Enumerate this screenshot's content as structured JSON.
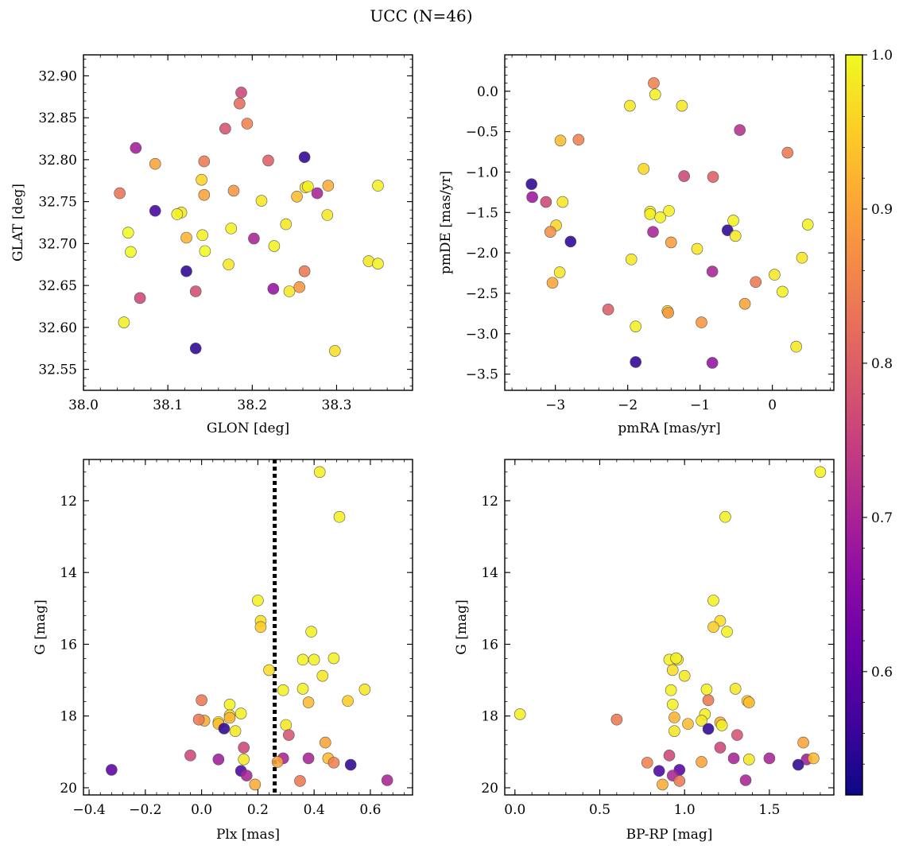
{
  "figure": {
    "title": "UCC (N=46)"
  },
  "chart_data": [
    {
      "id": "glon_glat",
      "type": "scatter",
      "xlabel": "GLON [deg]",
      "ylabel": "GLAT [deg]",
      "xlim": [
        38.0,
        38.39
      ],
      "ylim": [
        32.525,
        32.925
      ],
      "xticks": [
        38.0,
        38.1,
        38.2,
        38.3
      ],
      "xtick_labels": [
        "38.0",
        "38.1",
        "38.2",
        "38.3"
      ],
      "yticks": [
        32.55,
        32.6,
        32.65,
        32.7,
        32.75,
        32.8,
        32.85,
        32.9
      ],
      "ytick_labels": [
        "32.55",
        "32.60",
        "32.65",
        "32.70",
        "32.75",
        "32.80",
        "32.85",
        "32.90"
      ],
      "points": [
        {
          "x": 38.187,
          "y": 32.88,
          "c": 0.76
        },
        {
          "x": 38.185,
          "y": 32.867,
          "c": 0.82
        },
        {
          "x": 38.194,
          "y": 32.843,
          "c": 0.85
        },
        {
          "x": 38.168,
          "y": 32.837,
          "c": 0.78
        },
        {
          "x": 38.062,
          "y": 32.814,
          "c": 0.69
        },
        {
          "x": 38.085,
          "y": 32.795,
          "c": 0.9
        },
        {
          "x": 38.143,
          "y": 32.798,
          "c": 0.84
        },
        {
          "x": 38.219,
          "y": 32.799,
          "c": 0.8
        },
        {
          "x": 38.262,
          "y": 32.803,
          "c": 0.55
        },
        {
          "x": 38.14,
          "y": 32.776,
          "c": 0.96
        },
        {
          "x": 38.043,
          "y": 32.76,
          "c": 0.83
        },
        {
          "x": 38.143,
          "y": 32.758,
          "c": 0.9
        },
        {
          "x": 38.178,
          "y": 32.763,
          "c": 0.88
        },
        {
          "x": 38.211,
          "y": 32.751,
          "c": 0.98
        },
        {
          "x": 38.253,
          "y": 32.756,
          "c": 0.93
        },
        {
          "x": 38.263,
          "y": 32.767,
          "c": 0.97
        },
        {
          "x": 38.266,
          "y": 32.768,
          "c": 0.99
        },
        {
          "x": 38.277,
          "y": 32.76,
          "c": 0.7
        },
        {
          "x": 38.29,
          "y": 32.769,
          "c": 0.91
        },
        {
          "x": 38.349,
          "y": 32.769,
          "c": 0.99
        },
        {
          "x": 38.085,
          "y": 32.739,
          "c": 0.57
        },
        {
          "x": 38.116,
          "y": 32.737,
          "c": 0.98
        },
        {
          "x": 38.111,
          "y": 32.735,
          "c": 0.99
        },
        {
          "x": 38.053,
          "y": 32.713,
          "c": 1.0
        },
        {
          "x": 38.141,
          "y": 32.71,
          "c": 0.99
        },
        {
          "x": 38.122,
          "y": 32.707,
          "c": 0.92
        },
        {
          "x": 38.175,
          "y": 32.718,
          "c": 0.99
        },
        {
          "x": 38.202,
          "y": 32.706,
          "c": 0.7
        },
        {
          "x": 38.24,
          "y": 32.723,
          "c": 0.98
        },
        {
          "x": 38.289,
          "y": 32.734,
          "c": 0.98
        },
        {
          "x": 38.056,
          "y": 32.69,
          "c": 1.0
        },
        {
          "x": 38.144,
          "y": 32.691,
          "c": 1.0
        },
        {
          "x": 38.226,
          "y": 32.697,
          "c": 0.99
        },
        {
          "x": 38.172,
          "y": 32.675,
          "c": 0.98
        },
        {
          "x": 38.338,
          "y": 32.679,
          "c": 0.98
        },
        {
          "x": 38.349,
          "y": 32.676,
          "c": 0.99
        },
        {
          "x": 38.122,
          "y": 32.667,
          "c": 0.55
        },
        {
          "x": 38.262,
          "y": 32.667,
          "c": 0.84
        },
        {
          "x": 38.133,
          "y": 32.643,
          "c": 0.77
        },
        {
          "x": 38.225,
          "y": 32.646,
          "c": 0.67
        },
        {
          "x": 38.244,
          "y": 32.643,
          "c": 0.98
        },
        {
          "x": 38.256,
          "y": 32.648,
          "c": 0.88
        },
        {
          "x": 38.067,
          "y": 32.635,
          "c": 0.76
        },
        {
          "x": 38.048,
          "y": 32.606,
          "c": 0.99
        },
        {
          "x": 38.133,
          "y": 32.575,
          "c": 0.55
        },
        {
          "x": 38.298,
          "y": 32.572,
          "c": 0.97
        }
      ]
    },
    {
      "id": "pm",
      "type": "scatter",
      "xlabel": "pmRA [mas/yr]",
      "ylabel": "pmDE [mas/yr]",
      "xlim": [
        -3.7,
        0.85
      ],
      "ylim": [
        -3.7,
        0.45
      ],
      "xticks": [
        -3,
        -2,
        -1,
        0
      ],
      "xtick_labels": [
        "−3",
        "−2",
        "−1",
        "0"
      ],
      "yticks": [
        -3.5,
        -3.0,
        -2.5,
        -2.0,
        -1.5,
        -1.0,
        -0.5,
        0.0
      ],
      "ytick_labels": [
        "−3.5",
        "−3.0",
        "−2.5",
        "−2.0",
        "−1.5",
        "−1.0",
        "−0.5",
        "0.0"
      ],
      "points": [
        {
          "x": -1.64,
          "y": 0.1,
          "c": 0.85
        },
        {
          "x": -1.62,
          "y": -0.04,
          "c": 0.99
        },
        {
          "x": -1.97,
          "y": -0.18,
          "c": 0.98
        },
        {
          "x": -1.25,
          "y": -0.18,
          "c": 0.98
        },
        {
          "x": -0.45,
          "y": -0.48,
          "c": 0.72
        },
        {
          "x": -2.93,
          "y": -0.61,
          "c": 0.93
        },
        {
          "x": -2.68,
          "y": -0.6,
          "c": 0.85
        },
        {
          "x": 0.21,
          "y": -0.76,
          "c": 0.84
        },
        {
          "x": -1.78,
          "y": -0.96,
          "c": 0.96
        },
        {
          "x": -1.22,
          "y": -1.05,
          "c": 0.76
        },
        {
          "x": -0.82,
          "y": -1.06,
          "c": 0.8
        },
        {
          "x": -3.33,
          "y": -1.15,
          "c": 0.55
        },
        {
          "x": -3.32,
          "y": -1.31,
          "c": 0.68
        },
        {
          "x": -3.13,
          "y": -1.37,
          "c": 0.76
        },
        {
          "x": -2.9,
          "y": -1.37,
          "c": 0.98
        },
        {
          "x": -1.69,
          "y": -1.49,
          "c": 0.99
        },
        {
          "x": -1.69,
          "y": -1.52,
          "c": 0.99
        },
        {
          "x": -1.55,
          "y": -1.56,
          "c": 0.99
        },
        {
          "x": -1.43,
          "y": -1.48,
          "c": 0.99
        },
        {
          "x": -0.54,
          "y": -1.6,
          "c": 0.99
        },
        {
          "x": 0.49,
          "y": -1.65,
          "c": 0.99
        },
        {
          "x": -2.99,
          "y": -1.66,
          "c": 0.96
        },
        {
          "x": -3.07,
          "y": -1.74,
          "c": 0.87
        },
        {
          "x": -1.65,
          "y": -1.74,
          "c": 0.7
        },
        {
          "x": -0.62,
          "y": -1.72,
          "c": 0.55
        },
        {
          "x": -0.51,
          "y": -1.79,
          "c": 0.98
        },
        {
          "x": -2.79,
          "y": -1.86,
          "c": 0.55
        },
        {
          "x": -1.4,
          "y": -1.87,
          "c": 0.89
        },
        {
          "x": -1.04,
          "y": -1.95,
          "c": 0.98
        },
        {
          "x": -1.95,
          "y": -2.08,
          "c": 0.98
        },
        {
          "x": 0.41,
          "y": -2.06,
          "c": 0.98
        },
        {
          "x": -2.94,
          "y": -2.24,
          "c": 0.98
        },
        {
          "x": -0.83,
          "y": -2.23,
          "c": 0.7
        },
        {
          "x": 0.03,
          "y": -2.27,
          "c": 0.98
        },
        {
          "x": -3.04,
          "y": -2.37,
          "c": 0.9
        },
        {
          "x": -0.23,
          "y": -2.36,
          "c": 0.84
        },
        {
          "x": 0.14,
          "y": -2.48,
          "c": 0.99
        },
        {
          "x": -0.38,
          "y": -2.63,
          "c": 0.9
        },
        {
          "x": -2.27,
          "y": -2.7,
          "c": 0.8
        },
        {
          "x": -1.45,
          "y": -2.72,
          "c": 0.98
        },
        {
          "x": -1.44,
          "y": -2.74,
          "c": 0.88
        },
        {
          "x": -0.98,
          "y": -2.86,
          "c": 0.88
        },
        {
          "x": -1.89,
          "y": -2.91,
          "c": 0.99
        },
        {
          "x": 0.33,
          "y": -3.16,
          "c": 0.98
        },
        {
          "x": -1.89,
          "y": -3.35,
          "c": 0.55
        },
        {
          "x": -0.83,
          "y": -3.36,
          "c": 0.67
        }
      ]
    },
    {
      "id": "plx_g",
      "type": "scatter",
      "xlabel": "Plx [mas]",
      "ylabel": "G [mag]",
      "xlim": [
        -0.42,
        0.75
      ],
      "ylim": [
        20.2,
        10.85
      ],
      "y_inverted": true,
      "vline": {
        "x": 0.26,
        "style": "dotted"
      },
      "xticks": [
        -0.4,
        -0.2,
        0.0,
        0.2,
        0.4,
        0.6
      ],
      "xtick_labels": [
        "−0.4",
        "−0.2",
        "0.0",
        "0.2",
        "0.4",
        "0.6"
      ],
      "yticks": [
        12,
        14,
        16,
        18,
        20
      ],
      "ytick_labels": [
        "12",
        "14",
        "16",
        "18",
        "20"
      ],
      "points": [
        {
          "x": 0.42,
          "y": 11.2,
          "c": 0.99
        },
        {
          "x": 0.49,
          "y": 12.45,
          "c": 0.99
        },
        {
          "x": 0.2,
          "y": 14.78,
          "c": 0.99
        },
        {
          "x": 0.21,
          "y": 15.35,
          "c": 0.97
        },
        {
          "x": 0.21,
          "y": 15.52,
          "c": 0.95
        },
        {
          "x": 0.39,
          "y": 15.65,
          "c": 0.99
        },
        {
          "x": 0.36,
          "y": 16.43,
          "c": 0.99
        },
        {
          "x": 0.4,
          "y": 16.43,
          "c": 0.99
        },
        {
          "x": 0.47,
          "y": 16.39,
          "c": 0.99
        },
        {
          "x": 0.24,
          "y": 16.72,
          "c": 0.97
        },
        {
          "x": 0.43,
          "y": 16.88,
          "c": 0.98
        },
        {
          "x": 0.36,
          "y": 17.24,
          "c": 0.99
        },
        {
          "x": 0.29,
          "y": 17.28,
          "c": 0.99
        },
        {
          "x": 0.58,
          "y": 17.26,
          "c": 0.98
        },
        {
          "x": 0.0,
          "y": 17.56,
          "c": 0.84
        },
        {
          "x": 0.38,
          "y": 17.62,
          "c": 0.93
        },
        {
          "x": 0.52,
          "y": 17.58,
          "c": 0.95
        },
        {
          "x": 0.1,
          "y": 17.68,
          "c": 0.99
        },
        {
          "x": 0.14,
          "y": 17.93,
          "c": 0.99
        },
        {
          "x": 0.1,
          "y": 17.98,
          "c": 0.97
        },
        {
          "x": 0.01,
          "y": 18.13,
          "c": 0.91
        },
        {
          "x": -0.01,
          "y": 18.1,
          "c": 0.84
        },
        {
          "x": 0.06,
          "y": 18.17,
          "c": 0.98
        },
        {
          "x": 0.06,
          "y": 18.22,
          "c": 0.93
        },
        {
          "x": 0.1,
          "y": 18.05,
          "c": 0.92
        },
        {
          "x": 0.08,
          "y": 18.35,
          "c": 0.55
        },
        {
          "x": 0.12,
          "y": 18.42,
          "c": 0.98
        },
        {
          "x": 0.3,
          "y": 18.25,
          "c": 0.98
        },
        {
          "x": 0.31,
          "y": 18.53,
          "c": 0.78
        },
        {
          "x": 0.44,
          "y": 18.74,
          "c": 0.9
        },
        {
          "x": 0.15,
          "y": 18.88,
          "c": 0.76
        },
        {
          "x": -0.04,
          "y": 19.1,
          "c": 0.76
        },
        {
          "x": 0.06,
          "y": 19.21,
          "c": 0.69
        },
        {
          "x": 0.15,
          "y": 19.21,
          "c": 0.98
        },
        {
          "x": 0.29,
          "y": 19.18,
          "c": 0.7
        },
        {
          "x": 0.38,
          "y": 19.18,
          "c": 0.7
        },
        {
          "x": 0.45,
          "y": 19.18,
          "c": 0.93
        },
        {
          "x": 0.47,
          "y": 19.3,
          "c": 0.85
        },
        {
          "x": 0.27,
          "y": 19.28,
          "c": 0.9
        },
        {
          "x": 0.53,
          "y": 19.36,
          "c": 0.55
        },
        {
          "x": -0.32,
          "y": 19.5,
          "c": 0.6
        },
        {
          "x": 0.14,
          "y": 19.53,
          "c": 0.58
        },
        {
          "x": 0.16,
          "y": 19.66,
          "c": 0.7
        },
        {
          "x": 0.35,
          "y": 19.81,
          "c": 0.84
        },
        {
          "x": 0.66,
          "y": 19.79,
          "c": 0.7
        },
        {
          "x": 0.19,
          "y": 19.91,
          "c": 0.91
        }
      ]
    },
    {
      "id": "bprp_g",
      "type": "scatter",
      "xlabel": "BP-RP [mag]",
      "ylabel": "G [mag]",
      "xlim": [
        -0.06,
        1.88
      ],
      "ylim": [
        20.2,
        10.85
      ],
      "y_inverted": true,
      "xticks": [
        0.0,
        0.5,
        1.0,
        1.5
      ],
      "xtick_labels": [
        "0.0",
        "0.5",
        "1.0",
        "1.5"
      ],
      "yticks": [
        12,
        14,
        16,
        18,
        20
      ],
      "ytick_labels": [
        "12",
        "14",
        "16",
        "18",
        "20"
      ],
      "points": [
        {
          "x": 1.8,
          "y": 11.2,
          "c": 0.99
        },
        {
          "x": 1.24,
          "y": 12.45,
          "c": 0.99
        },
        {
          "x": 1.17,
          "y": 14.78,
          "c": 0.99
        },
        {
          "x": 1.21,
          "y": 15.35,
          "c": 0.97
        },
        {
          "x": 1.17,
          "y": 15.52,
          "c": 0.95
        },
        {
          "x": 1.25,
          "y": 15.65,
          "c": 0.99
        },
        {
          "x": 0.91,
          "y": 16.43,
          "c": 0.99
        },
        {
          "x": 0.96,
          "y": 16.43,
          "c": 0.99
        },
        {
          "x": 0.95,
          "y": 16.39,
          "c": 0.99
        },
        {
          "x": 0.93,
          "y": 16.72,
          "c": 0.97
        },
        {
          "x": 1.0,
          "y": 16.88,
          "c": 0.98
        },
        {
          "x": 0.92,
          "y": 17.28,
          "c": 0.99
        },
        {
          "x": 1.13,
          "y": 17.26,
          "c": 0.99
        },
        {
          "x": 1.3,
          "y": 17.24,
          "c": 0.98
        },
        {
          "x": 1.14,
          "y": 17.56,
          "c": 0.84
        },
        {
          "x": 1.37,
          "y": 17.58,
          "c": 0.95
        },
        {
          "x": 1.38,
          "y": 17.62,
          "c": 0.93
        },
        {
          "x": 0.93,
          "y": 17.68,
          "c": 0.99
        },
        {
          "x": 0.03,
          "y": 17.95,
          "c": 0.99
        },
        {
          "x": 1.12,
          "y": 17.95,
          "c": 0.99
        },
        {
          "x": 0.6,
          "y": 18.1,
          "c": 0.84
        },
        {
          "x": 0.94,
          "y": 18.04,
          "c": 0.92
        },
        {
          "x": 1.1,
          "y": 18.13,
          "c": 0.98
        },
        {
          "x": 1.21,
          "y": 18.18,
          "c": 0.91
        },
        {
          "x": 1.02,
          "y": 18.22,
          "c": 0.93
        },
        {
          "x": 1.22,
          "y": 18.26,
          "c": 0.99
        },
        {
          "x": 1.14,
          "y": 18.36,
          "c": 0.55
        },
        {
          "x": 0.94,
          "y": 18.42,
          "c": 0.98
        },
        {
          "x": 1.31,
          "y": 18.53,
          "c": 0.78
        },
        {
          "x": 1.7,
          "y": 18.74,
          "c": 0.9
        },
        {
          "x": 1.21,
          "y": 18.88,
          "c": 0.76
        },
        {
          "x": 0.91,
          "y": 19.1,
          "c": 0.76
        },
        {
          "x": 1.29,
          "y": 19.18,
          "c": 0.7
        },
        {
          "x": 1.38,
          "y": 19.21,
          "c": 0.98
        },
        {
          "x": 1.5,
          "y": 19.18,
          "c": 0.7
        },
        {
          "x": 1.72,
          "y": 19.21,
          "c": 0.69
        },
        {
          "x": 1.76,
          "y": 19.18,
          "c": 0.93
        },
        {
          "x": 0.78,
          "y": 19.3,
          "c": 0.85
        },
        {
          "x": 1.1,
          "y": 19.28,
          "c": 0.9
        },
        {
          "x": 1.67,
          "y": 19.36,
          "c": 0.55
        },
        {
          "x": 0.85,
          "y": 19.53,
          "c": 0.58
        },
        {
          "x": 0.97,
          "y": 19.5,
          "c": 0.6
        },
        {
          "x": 0.93,
          "y": 19.66,
          "c": 0.7
        },
        {
          "x": 0.97,
          "y": 19.81,
          "c": 0.84
        },
        {
          "x": 1.36,
          "y": 19.79,
          "c": 0.7
        },
        {
          "x": 0.87,
          "y": 19.91,
          "c": 0.91
        }
      ]
    }
  ],
  "colorbar": {
    "cmap": "plasma",
    "vmin": 0.52,
    "vmax": 1.0,
    "ticks": [
      0.6,
      0.7,
      0.8,
      0.9,
      1.0
    ],
    "tick_labels": [
      "0.6",
      "0.7",
      "0.8",
      "0.9",
      "1.0"
    ],
    "stops": [
      "#0d0887",
      "#41049d",
      "#6a00a8",
      "#8f0da4",
      "#b12a90",
      "#cc4778",
      "#e16462",
      "#f2844b",
      "#fca636",
      "#fcce25",
      "#f0f921"
    ]
  }
}
